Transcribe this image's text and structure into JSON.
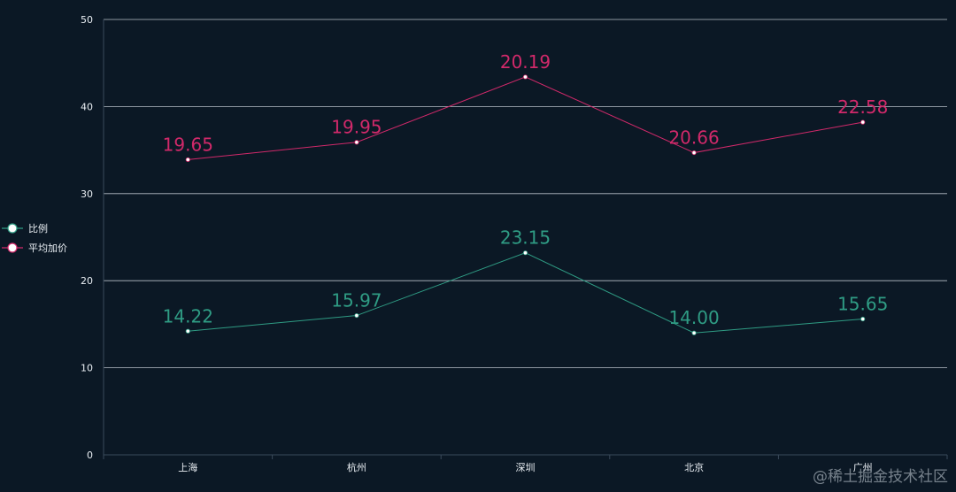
{
  "chart_data": {
    "type": "line",
    "categories": [
      "上海",
      "杭州",
      "深圳",
      "北京",
      "广州"
    ],
    "ylim": [
      0,
      50
    ],
    "yticks": [
      0,
      10,
      20,
      30,
      40,
      50
    ],
    "grid": true,
    "legend_position": "left",
    "series": [
      {
        "name": "比例",
        "color": "#2f9c84",
        "values": [
          14.2,
          16.0,
          23.2,
          14.0,
          15.6
        ],
        "labels": [
          "14.22",
          "15.97",
          "23.15",
          "14.00",
          "15.65"
        ]
      },
      {
        "name": "平均加价",
        "color": "#d1296a",
        "values": [
          33.9,
          35.9,
          43.4,
          34.7,
          38.2
        ],
        "labels": [
          "19.65",
          "19.95",
          "20.19",
          "20.66",
          "22.58"
        ]
      }
    ]
  },
  "watermark": "@稀土掘金技术社区"
}
